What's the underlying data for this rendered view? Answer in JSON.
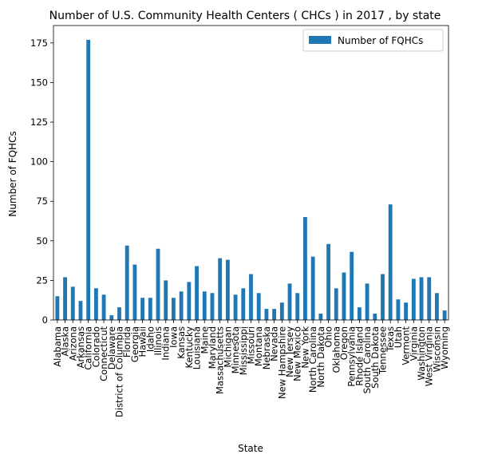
{
  "chart_data": {
    "type": "bar",
    "title": "Number of U.S. Community Health Centers ( CHCs ) in 2017 , by state",
    "xlabel": "State",
    "ylabel": "Number of FQHCs",
    "ylim": [
      0,
      186
    ],
    "yticks": [
      0,
      25,
      50,
      75,
      100,
      125,
      150,
      175
    ],
    "grid": false,
    "legend_position": "top-right",
    "bar_color": "#1f77b4",
    "categories": [
      "Alabama",
      "Alaska",
      "Arizona",
      "Arkansas",
      "California",
      "Colorado",
      "Connecticut",
      "Delaware",
      "District of Columbia",
      "Florida",
      "Georgia",
      "Hawaii",
      "Idaho",
      "Illinois",
      "Indiana",
      "Iowa",
      "Kansas",
      "Kentucky",
      "Louisiana",
      "Maine",
      "Maryland",
      "Massachusetts",
      "Michigan",
      "Minnesota",
      "Mississippi",
      "Missouri",
      "Montana",
      "Nebraska",
      "Nevada",
      "New Hampshire",
      "New Jersey",
      "New Mexico",
      "New York",
      "North Carolina",
      "North Dakota",
      "Ohio",
      "Oklahoma",
      "Oregon",
      "Pennsylvania",
      "Rhode Island",
      "South Carolina",
      "South Dakota",
      "Tennessee",
      "Texas",
      "Utah",
      "Vermont",
      "Virginia",
      "Washington",
      "West Virginia",
      "Wisconsin",
      "Wyoming"
    ],
    "series": [
      {
        "name": "Number of FQHCs",
        "values": [
          15,
          27,
          21,
          12,
          177,
          20,
          16,
          3,
          8,
          47,
          35,
          14,
          14,
          45,
          25,
          14,
          18,
          24,
          34,
          18,
          17,
          39,
          38,
          16,
          20,
          29,
          17,
          7,
          7,
          11,
          23,
          17,
          65,
          40,
          4,
          48,
          20,
          30,
          43,
          8,
          23,
          4,
          29,
          73,
          13,
          11,
          26,
          27,
          27,
          17,
          6
        ]
      }
    ]
  }
}
